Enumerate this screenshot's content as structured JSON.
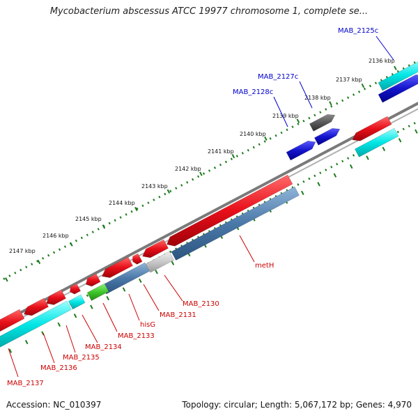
{
  "title": "Mycobacterium abscessus ATCC 19977 chromosome 1, complete se...",
  "footer": {
    "accession": "Accession: NC_010397",
    "summary": "Topology: circular; Length: 5,067,172 bp; Genes: 4,970"
  },
  "colors": {
    "forward_cds": "#e8101a",
    "reverse_cds": "#1414cc",
    "rrna": "#00e5e5",
    "steelblue": "#4a78a8",
    "gray_feature": "#c8c8c8",
    "dark_feature": "#585858",
    "green_feature": "#3fc62a",
    "backbone": "#7a7a7a",
    "tick": "#1c7a1c",
    "forward_label": "#cc0000",
    "reverse_label": "#0000cc"
  },
  "ticks": [
    {
      "label": "2136 kbp",
      "kbp": 2136
    },
    {
      "label": "2137 kbp",
      "kbp": 2137
    },
    {
      "label": "2138 kbp",
      "kbp": 2138
    },
    {
      "label": "2139 kbp",
      "kbp": 2139
    },
    {
      "label": "2140 kbp",
      "kbp": 2140
    },
    {
      "label": "2141 kbp",
      "kbp": 2141
    },
    {
      "label": "2142 kbp",
      "kbp": 2142
    },
    {
      "label": "2143 kbp",
      "kbp": 2143
    },
    {
      "label": "2144 kbp",
      "kbp": 2144
    },
    {
      "label": "2145 kbp",
      "kbp": 2145
    },
    {
      "label": "2146 kbp",
      "kbp": 2146
    },
    {
      "label": "2147 kbp",
      "kbp": 2147
    }
  ],
  "gene_labels": [
    {
      "label": "MAB_2125c",
      "strand": "reverse"
    },
    {
      "label": "MAB_2127c",
      "strand": "reverse"
    },
    {
      "label": "MAB_2128c",
      "strand": "reverse"
    },
    {
      "label": "metH",
      "strand": "forward"
    },
    {
      "label": "MAB_2130",
      "strand": "forward"
    },
    {
      "label": "MAB_2131",
      "strand": "forward"
    },
    {
      "label": "hisG",
      "strand": "forward"
    },
    {
      "label": "MAB_2133",
      "strand": "forward"
    },
    {
      "label": "MAB_2134",
      "strand": "forward"
    },
    {
      "label": "MAB_2135",
      "strand": "forward"
    },
    {
      "label": "MAB_2136",
      "strand": "forward"
    },
    {
      "label": "MAB_2137",
      "strand": "forward"
    }
  ]
}
